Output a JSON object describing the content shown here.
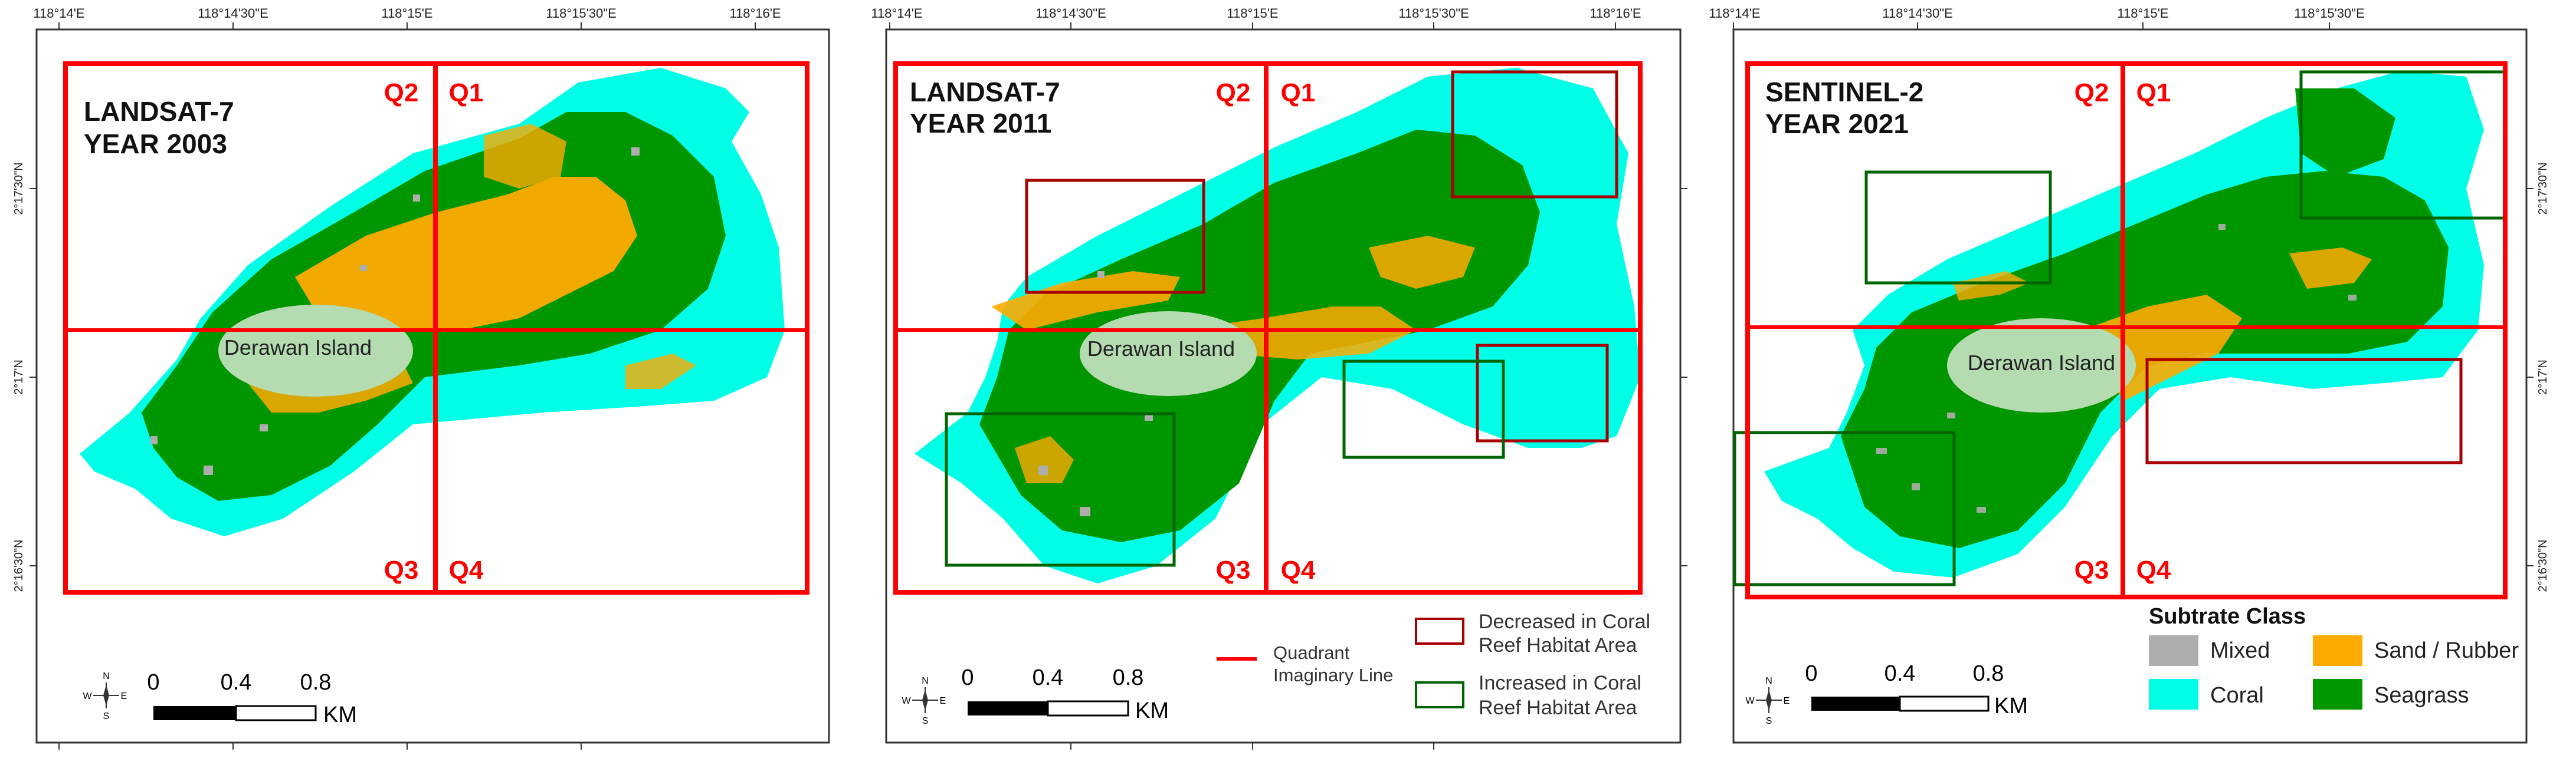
{
  "panels": [
    {
      "satellite": "LANDSAT-7",
      "year": "YEAR 2003",
      "top_ticks": [
        "118°14'E",
        "118°14'30\"E",
        "118°15'E",
        "118°15'30\"E",
        "118°16'E"
      ],
      "left_ticks": [
        "2°17'30\"N",
        "2°17'N",
        "2°16'30\"N"
      ],
      "right_ticks": []
    },
    {
      "satellite": "LANDSAT-7",
      "year": "YEAR 2011",
      "top_ticks": [
        "118°14'E",
        "118°14'30\"E",
        "118°15'E",
        "118°15'30\"E",
        "118°16'E"
      ],
      "left_ticks": [],
      "right_ticks": []
    },
    {
      "satellite": "SENTINEL-2",
      "year": "YEAR 2021",
      "top_ticks": [
        "118°14'E",
        "118°14'30\"E",
        "118°15'E",
        "118°15'30\"E"
      ],
      "left_ticks": [],
      "right_ticks": [
        "2°17'30\"N",
        "2°17'N",
        "2°16'30\"N"
      ]
    }
  ],
  "quadrants": {
    "q1": "Q1",
    "q2": "Q2",
    "q3": "Q3",
    "q4": "Q4"
  },
  "island_label": "Derawan Island",
  "scale_bar": {
    "ticks": [
      "0",
      "0.4",
      "0.8"
    ],
    "unit": "KM"
  },
  "compass": {
    "n": "N",
    "s": "S",
    "e": "E",
    "w": "W"
  },
  "legend_lines": {
    "quadrant_line_1": "Quadrant",
    "quadrant_line_2": "Imaginary Line",
    "decreased_1": "Decreased in Coral",
    "decreased_2": "Reef Habitat Area",
    "increased_1": "Increased in Coral",
    "increased_2": "Reef Habitat Area"
  },
  "legend_classes": {
    "title": "Subtrate Class",
    "items": [
      {
        "label": "Mixed",
        "color": "#aeaeae"
      },
      {
        "label": "Sand / Rubber",
        "color": "#ffaa00"
      },
      {
        "label": "Coral",
        "color": "#00ffe6"
      },
      {
        "label": "Seagrass",
        "color": "#009600"
      }
    ]
  },
  "colors": {
    "quadrant": "#ff0000",
    "decreased": "#a80000",
    "increased": "#006400",
    "island": "#b5dbb0",
    "coral": "#00ffe6",
    "seagrass": "#009600",
    "sand": "#ffaa00",
    "mixed": "#aeaeae"
  }
}
